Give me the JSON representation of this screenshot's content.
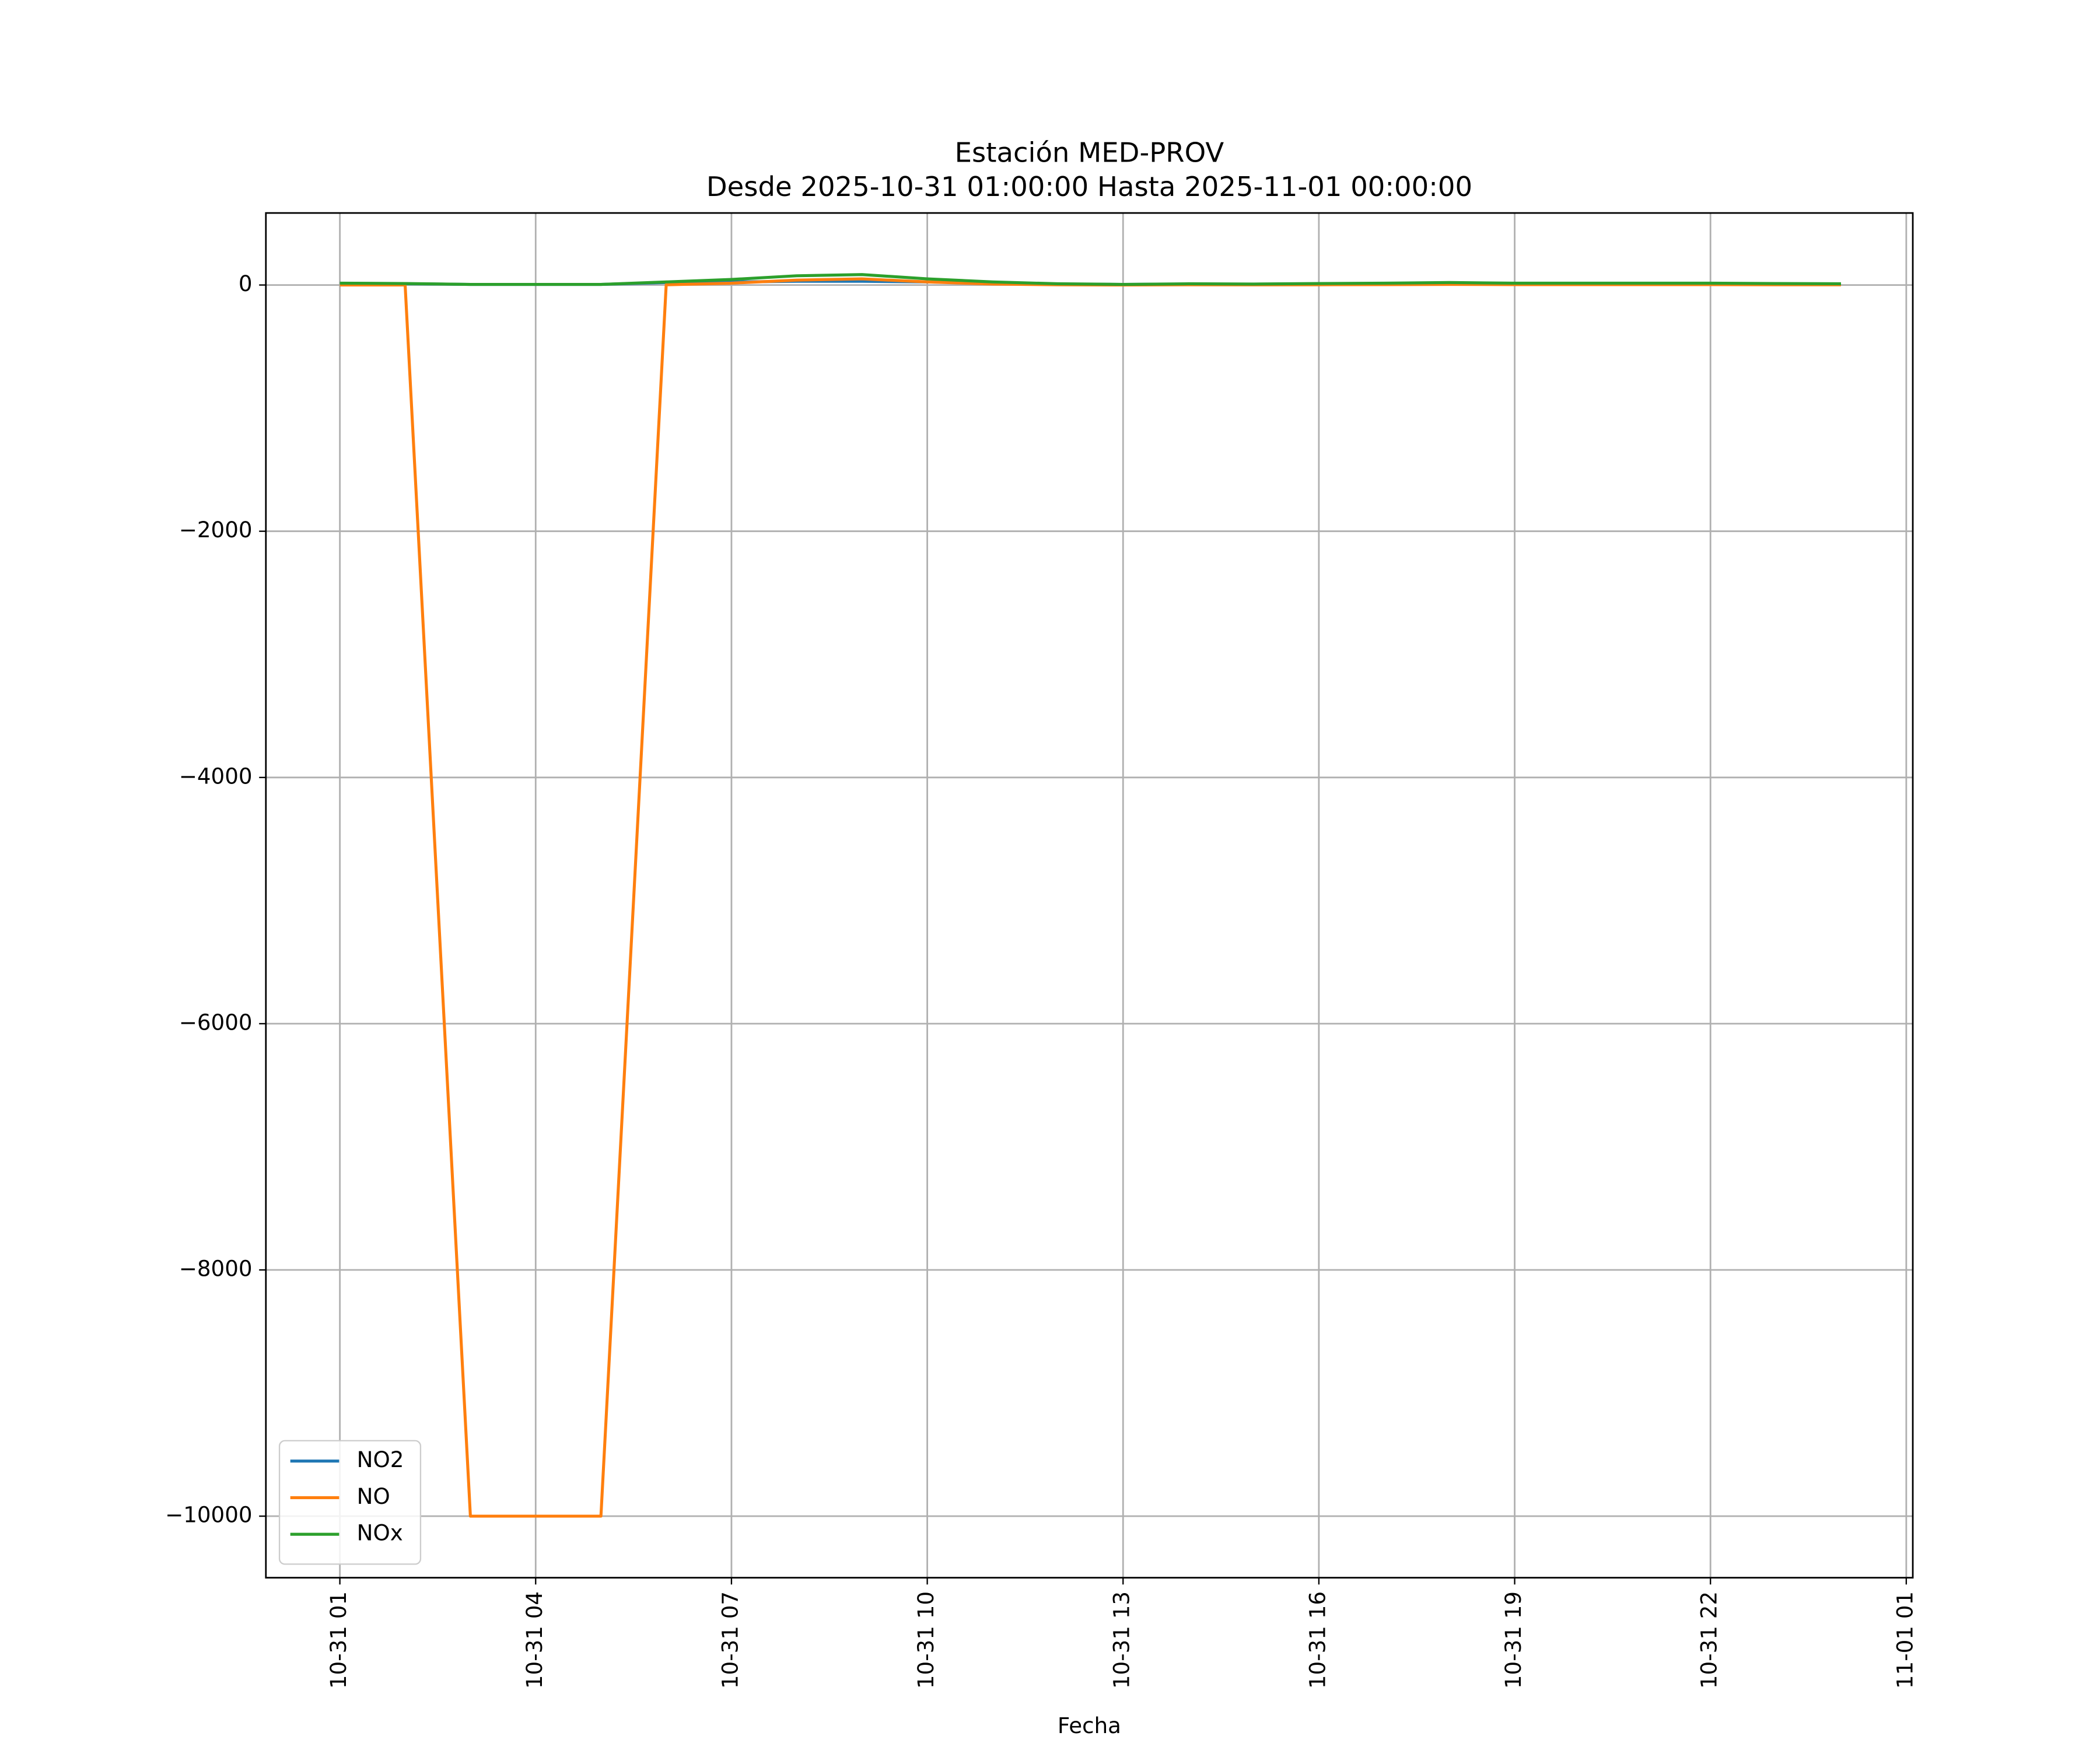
{
  "chart_data": {
    "type": "line",
    "title": "Estación MED-PROV",
    "subtitle": "Desde 2025-10-31 01:00:00 Hasta 2025-11-01 00:00:00",
    "x_label": "Fecha",
    "x": [
      "10-31 01",
      "10-31 02",
      "10-31 03",
      "10-31 04",
      "10-31 05",
      "10-31 06",
      "10-31 07",
      "10-31 08",
      "10-31 09",
      "10-31 10",
      "10-31 11",
      "10-31 12",
      "10-31 13",
      "10-31 14",
      "10-31 15",
      "10-31 16",
      "10-31 17",
      "10-31 18",
      "10-31 19",
      "10-31 20",
      "10-31 21",
      "10-31 22",
      "10-31 23",
      "11-01 00"
    ],
    "series": [
      {
        "name": "NO2",
        "color": "#1f77b4",
        "values": [
          12,
          10,
          5,
          5,
          5,
          20,
          25,
          30,
          30,
          25,
          15,
          8,
          5,
          8,
          6,
          10,
          12,
          15,
          12,
          12,
          12,
          12,
          10,
          8
        ]
      },
      {
        "name": "NO",
        "color": "#ff7f0e",
        "values": [
          0,
          0,
          -10000,
          -10000,
          -10000,
          2,
          15,
          40,
          50,
          25,
          8,
          2,
          0,
          2,
          1,
          2,
          3,
          5,
          3,
          3,
          3,
          3,
          2,
          2
        ]
      },
      {
        "name": "NOx",
        "color": "#2ca02c",
        "values": [
          15,
          12,
          5,
          5,
          5,
          25,
          45,
          75,
          85,
          50,
          25,
          10,
          5,
          10,
          8,
          12,
          15,
          20,
          15,
          15,
          15,
          15,
          12,
          10
        ]
      }
    ],
    "xlim": [
      "10-30 23:52",
      "11-01 01:06"
    ],
    "xticks": [
      "10-31 01",
      "10-31 04",
      "10-31 07",
      "10-31 10",
      "10-31 13",
      "10-31 16",
      "10-31 19",
      "10-31 22",
      "11-01 01"
    ],
    "ylim": [
      -10500,
      585
    ],
    "yticks": [
      {
        "value": -10000,
        "label": "−10000"
      },
      {
        "value": -8000,
        "label": "−8000"
      },
      {
        "value": -6000,
        "label": "−6000"
      },
      {
        "value": -4000,
        "label": "−4000"
      },
      {
        "value": -2000,
        "label": "−2000"
      },
      0
    ],
    "grid": true,
    "legend": "lower left"
  }
}
